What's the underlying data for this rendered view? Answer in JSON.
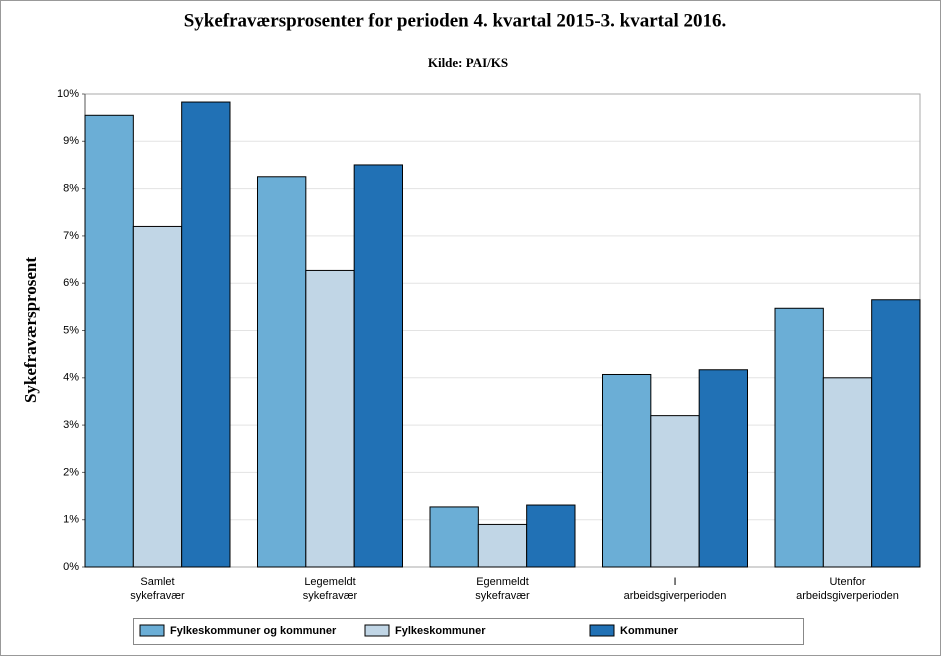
{
  "chart_data": {
    "type": "bar",
    "title": "Sykefraværsprosenter for perioden 4. kvartal 2015-3. kvartal 2016.",
    "subtitle": "Kilde: PAI/KS",
    "y_label": "Sykefraværsprosent",
    "categories": [
      "Samlet\nsykefravær",
      "Legemeldt\nsykefravær",
      "Egenmeldt\nsykefravær",
      "I\narbeidsgiverperioden",
      "Utenfor\narbeidsgiverperioden"
    ],
    "series": [
      {
        "name": "Fylkeskommuner og kommuner",
        "color": "#6baed6",
        "values": [
          9.55,
          8.25,
          1.27,
          4.07,
          5.47
        ]
      },
      {
        "name": "Fylkeskommuner",
        "color": "#c1d6e6",
        "values": [
          7.2,
          6.27,
          0.9,
          3.2,
          4.0
        ]
      },
      {
        "name": "Kommuner",
        "color": "#2171b5",
        "values": [
          9.83,
          8.5,
          1.31,
          4.17,
          5.65
        ]
      }
    ],
    "ylim": [
      0,
      10
    ],
    "yticks": [
      {
        "value": 0,
        "label": "0%"
      },
      {
        "value": 1,
        "label": "1%"
      },
      {
        "value": 2,
        "label": "2%"
      },
      {
        "value": 3,
        "label": "3%"
      },
      {
        "value": 4,
        "label": "4%"
      },
      {
        "value": 5,
        "label": "5%"
      },
      {
        "value": 6,
        "label": "6%"
      },
      {
        "value": 7,
        "label": "7%"
      },
      {
        "value": 8,
        "label": "8%"
      },
      {
        "value": 9,
        "label": "9%"
      },
      {
        "value": 10,
        "label": "10%"
      }
    ],
    "grid": true
  }
}
